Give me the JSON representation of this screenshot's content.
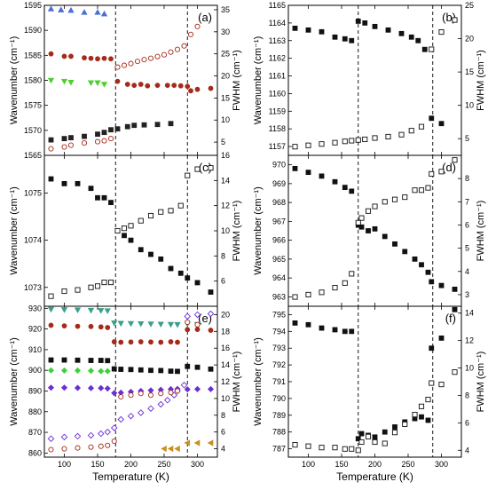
{
  "chart_data": [
    {
      "panel": "a",
      "label": "(a)",
      "type": "scatter",
      "xlabel": "",
      "ylabel": "Wavenumber (cm⁻¹)",
      "y2label": "FWHM (cm⁻¹)",
      "xlim": [
        70,
        330
      ],
      "ylim": [
        1565,
        1595
      ],
      "y2lim": [
        2,
        36
      ],
      "xticks": [
        100,
        150,
        200,
        250,
        300
      ],
      "show_xticklabels": false,
      "yticks": [
        1565,
        1570,
        1575,
        1580,
        1585,
        1590,
        1595
      ],
      "y2ticks": [
        5,
        10,
        15,
        20,
        25,
        30,
        35
      ],
      "vlines": [
        177,
        285
      ],
      "series": [
        {
          "marker": "triangle-up",
          "filled": true,
          "color": "#4a6fd6",
          "axis": "y",
          "x": [
            80,
            95,
            110,
            130,
            150,
            160
          ],
          "y": [
            1594.3,
            1594.1,
            1594.0,
            1593.6,
            1593.6,
            1593.3
          ]
        },
        {
          "marker": "circle",
          "filled": true,
          "color": "#a52a1a",
          "axis": "y",
          "x": [
            80,
            100,
            110,
            130,
            140,
            150,
            160,
            170,
            180,
            195,
            205,
            215,
            225,
            240,
            255,
            265,
            275,
            285,
            290,
            300,
            320
          ],
          "y": [
            1585.3,
            1584.8,
            1584.8,
            1584.5,
            1584.4,
            1584.3,
            1584.4,
            1584.3,
            1579.8,
            1579.2,
            1579.0,
            1579.2,
            1578.9,
            1579.0,
            1579.0,
            1579.0,
            1578.9,
            1578.8,
            1577.9,
            1578.2,
            1578.4
          ]
        },
        {
          "marker": "triangle-down",
          "filled": true,
          "color": "#4fcf2f",
          "axis": "y",
          "x": [
            80,
            100,
            110,
            140,
            150,
            160
          ],
          "y": [
            1580.0,
            1579.8,
            1579.6,
            1579.5,
            1579.5,
            1579.2
          ]
        },
        {
          "marker": "square",
          "filled": true,
          "color": "#222222",
          "axis": "y2",
          "x": [
            80,
            100,
            110,
            130,
            150,
            160,
            170,
            180,
            195,
            205,
            220,
            240,
            260
          ],
          "y": [
            5.5,
            5.8,
            6.0,
            6.3,
            6.8,
            7.2,
            7.8,
            8.0,
            8.5,
            8.8,
            8.9,
            9.0,
            9.2
          ]
        },
        {
          "marker": "circle",
          "filled": false,
          "color": "#a52a1a",
          "axis": "y2",
          "x": [
            80,
            100,
            110,
            130,
            150,
            160,
            170,
            180,
            190,
            200,
            210,
            220,
            230,
            240,
            250,
            260,
            270,
            280,
            290,
            300
          ],
          "y": [
            3.5,
            3.9,
            4.3,
            4.8,
            5.1,
            5.3,
            5.8,
            22.0,
            22.4,
            22.8,
            23.3,
            23.7,
            24.0,
            24.4,
            24.8,
            25.4,
            26.0,
            26.8,
            29.4,
            31.2
          ]
        }
      ]
    },
    {
      "panel": "b",
      "label": "(b)",
      "type": "scatter",
      "xlabel": "",
      "ylabel": "Wavenumber (cm⁻¹)",
      "y2label": "FWHM (cm⁻¹)",
      "xlim": [
        70,
        330
      ],
      "ylim": [
        1156.5,
        1165
      ],
      "y2lim": [
        2.5,
        25
      ],
      "xticks": [
        100,
        150,
        200,
        250,
        300
      ],
      "show_xticklabels": false,
      "yticks": [
        1157,
        1158,
        1159,
        1160,
        1161,
        1162,
        1163,
        1164,
        1165
      ],
      "y2ticks": [
        5,
        10,
        15,
        20,
        25
      ],
      "vlines": [
        175,
        287
      ],
      "series": [
        {
          "marker": "square",
          "filled": true,
          "color": "#111111",
          "axis": "y",
          "x": [
            80,
            100,
            120,
            140,
            155,
            165,
            175,
            185,
            200,
            220,
            240,
            255,
            265,
            275,
            285,
            300
          ],
          "y": [
            1163.7,
            1163.6,
            1163.5,
            1163.2,
            1163.1,
            1163.0,
            1164.1,
            1164.0,
            1163.8,
            1163.6,
            1163.4,
            1163.2,
            1163.0,
            1162.5,
            1158.6,
            1158.3
          ]
        },
        {
          "marker": "square",
          "filled": false,
          "color": "#111111",
          "axis": "y2",
          "x": [
            80,
            100,
            120,
            140,
            155,
            165,
            175,
            185,
            200,
            220,
            240,
            255,
            270,
            285,
            300,
            320
          ],
          "y": [
            3.8,
            4.0,
            4.2,
            4.4,
            4.6,
            4.7,
            4.8,
            4.9,
            5.1,
            5.3,
            5.6,
            6.2,
            6.8,
            18.4,
            21.0,
            22.8
          ]
        }
      ]
    },
    {
      "panel": "c",
      "label": "(c)",
      "type": "scatter",
      "xlabel": "",
      "ylabel": "Wavenumber (cm⁻¹)",
      "y2label": "FWHM (cm⁻¹)",
      "xlim": [
        70,
        330
      ],
      "ylim": [
        1072.6,
        1075.8
      ],
      "y2lim": [
        4,
        16
      ],
      "xticks": [
        100,
        150,
        200,
        250,
        300
      ],
      "show_xticklabels": false,
      "yticks": [
        1073,
        1074,
        1075
      ],
      "y2ticks": [
        6,
        8,
        10,
        12,
        14,
        16
      ],
      "vlines": [
        177,
        285
      ],
      "series": [
        {
          "marker": "square",
          "filled": true,
          "color": "#111111",
          "axis": "y",
          "x": [
            80,
            100,
            120,
            140,
            150,
            160,
            170,
            180,
            190,
            200,
            215,
            230,
            245,
            260,
            275,
            285,
            300,
            320
          ],
          "y": [
            1075.3,
            1075.2,
            1075.2,
            1075.1,
            1074.9,
            1074.9,
            1074.8,
            1074.2,
            1074.1,
            1074.0,
            1073.8,
            1073.7,
            1073.6,
            1073.4,
            1073.3,
            1073.2,
            1073.1,
            1072.9
          ]
        },
        {
          "marker": "square",
          "filled": false,
          "color": "#111111",
          "axis": "y2",
          "x": [
            80,
            100,
            120,
            140,
            150,
            160,
            170,
            180,
            190,
            200,
            215,
            230,
            245,
            260,
            275,
            285,
            300,
            320
          ],
          "y": [
            4.8,
            5.2,
            5.3,
            5.5,
            5.6,
            5.9,
            5.9,
            10.0,
            10.2,
            10.4,
            10.8,
            11.2,
            11.5,
            11.6,
            12.0,
            14.4,
            14.9,
            15.0
          ]
        }
      ]
    },
    {
      "panel": "d",
      "label": "(d)",
      "type": "scatter",
      "xlabel": "",
      "ylabel": "Wavenumber (cm⁻¹)",
      "y2label": "FWHM (cm⁻¹)",
      "xlim": [
        70,
        330
      ],
      "ylim": [
        962.5,
        970.5
      ],
      "y2lim": [
        2.5,
        9
      ],
      "xticks": [
        100,
        150,
        200,
        250,
        300
      ],
      "show_xticklabels": false,
      "yticks": [
        963,
        964,
        965,
        966,
        967,
        968,
        969,
        970
      ],
      "y2ticks": [
        3,
        4,
        5,
        6,
        7,
        8
      ],
      "vlines": [
        175,
        287
      ],
      "series": [
        {
          "marker": "square",
          "filled": true,
          "color": "#111111",
          "axis": "y",
          "x": [
            80,
            100,
            120,
            140,
            155,
            165,
            175,
            180,
            190,
            200,
            215,
            230,
            245,
            260,
            270,
            280,
            285,
            300,
            320
          ],
          "y": [
            969.8,
            969.6,
            969.4,
            969.1,
            968.8,
            968.6,
            966.8,
            966.7,
            966.5,
            966.6,
            966.2,
            965.8,
            965.4,
            965.0,
            964.7,
            964.3,
            963.8,
            963.6,
            963.4
          ]
        },
        {
          "marker": "square",
          "filled": false,
          "color": "#111111",
          "axis": "y2",
          "x": [
            80,
            100,
            120,
            140,
            155,
            165,
            175,
            180,
            190,
            200,
            215,
            230,
            245,
            260,
            270,
            280,
            285,
            300,
            320
          ],
          "y": [
            2.9,
            3.0,
            3.1,
            3.3,
            3.5,
            3.9,
            6.1,
            6.3,
            6.6,
            6.8,
            7.0,
            7.1,
            7.2,
            7.5,
            7.5,
            7.6,
            8.2,
            8.3,
            8.8
          ]
        }
      ]
    },
    {
      "panel": "e",
      "label": "(e)",
      "type": "scatter",
      "xlabel": "Temperature (K)",
      "ylabel": "Wavenumber (cm⁻¹)",
      "y2label": "FWHM (cm⁻¹)",
      "xlim": [
        70,
        330
      ],
      "ylim": [
        858,
        931
      ],
      "y2lim": [
        3,
        21
      ],
      "xticks": [
        100,
        150,
        200,
        250,
        300
      ],
      "show_xticklabels": true,
      "yticks": [
        860,
        870,
        880,
        890,
        900,
        910,
        920,
        930
      ],
      "y2ticks": [
        4,
        6,
        8,
        10,
        12,
        14,
        16,
        18,
        20
      ],
      "vlines": [
        177,
        285
      ],
      "series": [
        {
          "marker": "triangle-down",
          "filled": true,
          "color": "#3b9e8a",
          "axis": "y",
          "x": [
            80,
            100,
            120,
            140,
            155,
            165,
            175,
            185,
            200,
            215,
            230,
            245,
            260,
            270,
            285,
            300
          ],
          "y": [
            929.5,
            929.3,
            929.2,
            929.0,
            928.9,
            928.8,
            922.9,
            922.7,
            922.6,
            922.5,
            922.4,
            922.3,
            922.2,
            922.1,
            922.4,
            922.2
          ]
        },
        {
          "marker": "circle",
          "filled": true,
          "color": "#a52a1a",
          "axis": "y",
          "x": [
            80,
            100,
            120,
            140,
            155,
            165,
            175,
            185,
            200,
            215,
            230,
            245,
            260,
            270,
            285,
            300,
            320
          ],
          "y": [
            921.8,
            921.5,
            921.3,
            921.2,
            921.0,
            920.7,
            913.8,
            913.6,
            913.7,
            913.8,
            913.7,
            913.6,
            913.8,
            913.6,
            919.7,
            919.8,
            919.4
          ]
        },
        {
          "marker": "square",
          "filled": true,
          "color": "#111111",
          "axis": "y",
          "x": [
            80,
            100,
            120,
            140,
            155,
            165,
            175,
            185,
            200,
            215,
            230,
            245,
            260,
            270,
            285,
            300,
            320
          ],
          "y": [
            905.0,
            905.0,
            904.9,
            904.8,
            904.8,
            904.7,
            900.7,
            900.5,
            900.4,
            900.2,
            900.0,
            899.9,
            899.6,
            899.5,
            901.9,
            901.5,
            900.6
          ]
        },
        {
          "marker": "diamond",
          "filled": true,
          "color": "#3ecf3e",
          "axis": "y",
          "x": [
            80,
            100,
            120,
            140,
            155,
            165
          ],
          "y": [
            900.0,
            899.9,
            899.9,
            899.8,
            899.6,
            899.6
          ]
        },
        {
          "marker": "diamond",
          "filled": true,
          "color": "#6b2fd6",
          "axis": "y",
          "x": [
            80,
            100,
            120,
            140,
            155,
            165,
            175,
            185,
            200,
            215,
            230,
            245,
            260,
            270,
            285,
            300,
            320
          ],
          "y": [
            891.6,
            891.6,
            891.5,
            891.4,
            891.4,
            891.2,
            889.0,
            889.2,
            889.6,
            890.0,
            890.3,
            890.6,
            890.9,
            891.0,
            890.8,
            890.9,
            890.9
          ]
        },
        {
          "marker": "diamond",
          "filled": false,
          "color": "#6b2fd6",
          "axis": "y2",
          "x": [
            80,
            100,
            120,
            140,
            155,
            165,
            175,
            185,
            200,
            215,
            230,
            245,
            255,
            265,
            270,
            280,
            285,
            300,
            320
          ],
          "y": [
            5.2,
            5.4,
            5.5,
            5.6,
            5.8,
            6.0,
            6.5,
            7.5,
            7.9,
            8.3,
            8.8,
            9.3,
            9.8,
            10.4,
            10.9,
            11.6,
            19.8,
            20.0,
            20.1
          ]
        },
        {
          "marker": "circle",
          "filled": false,
          "color": "#a52a1a",
          "axis": "y2",
          "x": [
            80,
            100,
            120,
            140,
            155,
            165,
            175,
            185,
            200,
            215,
            230,
            245,
            260,
            270,
            285,
            300
          ],
          "y": [
            3.9,
            4.0,
            4.1,
            4.2,
            4.3,
            4.4,
            4.9,
            10.2,
            10.4,
            10.6,
            10.4,
            10.6,
            10.7,
            10.9,
            19.1,
            18.8
          ]
        },
        {
          "marker": "triangle-left",
          "filled": true,
          "color": "#c8901f",
          "axis": "y2",
          "x": [
            250,
            260,
            270,
            285,
            300,
            320
          ],
          "y": [
            4.0,
            4.0,
            4.0,
            4.7,
            4.7,
            4.7
          ]
        }
      ]
    },
    {
      "panel": "f",
      "label": "(f)",
      "type": "scatter",
      "xlabel": "Temperature (K)",
      "ylabel": "Wavenumber (cm⁻¹)",
      "y2label": "FWHM (cm⁻¹)",
      "xlim": [
        70,
        330
      ],
      "ylim": [
        786.5,
        795.5
      ],
      "y2lim": [
        3.5,
        14.5
      ],
      "xticks": [
        100,
        150,
        200,
        250,
        300
      ],
      "show_xticklabels": true,
      "yticks": [
        787,
        788,
        789,
        790,
        791,
        792,
        793,
        794,
        795
      ],
      "y2ticks": [
        4,
        6,
        8,
        10,
        12,
        14
      ],
      "vlines": [
        175,
        287
      ],
      "series": [
        {
          "marker": "square",
          "filled": true,
          "color": "#111111",
          "axis": "y",
          "x": [
            80,
            100,
            120,
            140,
            155,
            165,
            175,
            180,
            190,
            200,
            215,
            230,
            245,
            260,
            270,
            280,
            285,
            300,
            320
          ],
          "y": [
            794.5,
            794.4,
            794.2,
            794.1,
            794.0,
            794.0,
            787.6,
            787.9,
            787.8,
            787.7,
            788.0,
            788.3,
            788.6,
            788.8,
            788.9,
            788.7,
            793.0,
            793.6,
            795.3
          ]
        },
        {
          "marker": "square",
          "filled": false,
          "color": "#111111",
          "axis": "y2",
          "x": [
            80,
            100,
            120,
            140,
            155,
            165,
            175,
            180,
            190,
            200,
            215,
            230,
            245,
            260,
            270,
            280,
            285,
            300,
            320
          ],
          "y": [
            4.4,
            4.3,
            4.2,
            4.2,
            4.1,
            4.1,
            4.0,
            4.6,
            5.0,
            4.6,
            4.5,
            5.3,
            5.9,
            6.6,
            7.2,
            7.7,
            8.9,
            8.8,
            9.7
          ]
        }
      ]
    }
  ]
}
